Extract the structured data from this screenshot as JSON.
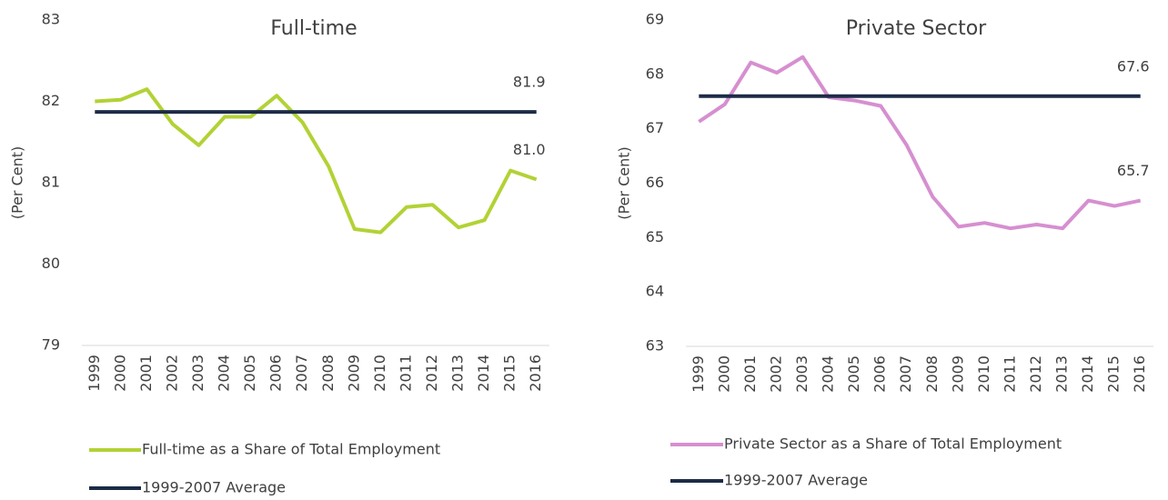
{
  "chart_data": [
    {
      "type": "line",
      "title": "Full-time",
      "y_label": "(Per Cent)",
      "categories": [
        "1999",
        "2000",
        "2001",
        "2002",
        "2003",
        "2004",
        "2005",
        "2006",
        "2007",
        "2008",
        "2009",
        "2010",
        "2011",
        "2012",
        "2013",
        "2014",
        "2015",
        "2016"
      ],
      "ylim": [
        79,
        83
      ],
      "yticks": [
        79,
        80,
        81,
        82,
        83
      ],
      "series": [
        {
          "name": "Full-time as a Share of Total Employment",
          "color": "#b2d235",
          "values": [
            82.0,
            82.02,
            82.15,
            81.72,
            81.46,
            81.81,
            81.81,
            82.07,
            81.74,
            81.2,
            80.43,
            80.39,
            80.7,
            80.73,
            80.45,
            80.54,
            81.15,
            81.04
          ],
          "value_labels": [
            null,
            null,
            null,
            null,
            null,
            null,
            null,
            null,
            null,
            null,
            null,
            null,
            null,
            null,
            null,
            null,
            null,
            "81.0"
          ]
        },
        {
          "name": "1999-2007 Average",
          "color": "#1c2b47",
          "values": [
            81.87,
            81.87,
            81.87,
            81.87,
            81.87,
            81.87,
            81.87,
            81.87,
            81.87,
            81.87,
            81.87,
            81.87,
            81.87,
            81.87,
            81.87,
            81.87,
            81.87,
            81.87
          ],
          "value_labels": [
            null,
            null,
            null,
            null,
            null,
            null,
            null,
            null,
            null,
            null,
            null,
            null,
            null,
            null,
            null,
            null,
            null,
            "81.9"
          ]
        }
      ]
    },
    {
      "type": "line",
      "title": "Private Sector",
      "y_label": "(Per Cent)",
      "categories": [
        "1999",
        "2000",
        "2001",
        "2002",
        "2003",
        "2004",
        "2005",
        "2006",
        "2007",
        "2008",
        "2009",
        "2010",
        "2011",
        "2012",
        "2013",
        "2014",
        "2015",
        "2016"
      ],
      "ylim": [
        63,
        69
      ],
      "yticks": [
        63,
        64,
        65,
        66,
        67,
        68,
        69
      ],
      "series": [
        {
          "name": "Private Sector as a Share of Total Employment",
          "color": "#d68fd0",
          "values": [
            67.13,
            67.45,
            68.22,
            68.03,
            68.32,
            67.58,
            67.52,
            67.42,
            66.7,
            65.75,
            65.2,
            65.27,
            65.17,
            65.24,
            65.17,
            65.68,
            65.58,
            65.68
          ],
          "value_labels": [
            null,
            null,
            null,
            null,
            null,
            null,
            null,
            null,
            null,
            null,
            null,
            null,
            null,
            null,
            null,
            null,
            null,
            "65.7"
          ]
        },
        {
          "name": "1999-2007 Average",
          "color": "#1c2b47",
          "values": [
            67.6,
            67.6,
            67.6,
            67.6,
            67.6,
            67.6,
            67.6,
            67.6,
            67.6,
            67.6,
            67.6,
            67.6,
            67.6,
            67.6,
            67.6,
            67.6,
            67.6,
            67.6
          ],
          "value_labels": [
            null,
            null,
            null,
            null,
            null,
            null,
            null,
            null,
            null,
            null,
            null,
            null,
            null,
            null,
            null,
            null,
            null,
            "67.6"
          ]
        }
      ]
    }
  ]
}
